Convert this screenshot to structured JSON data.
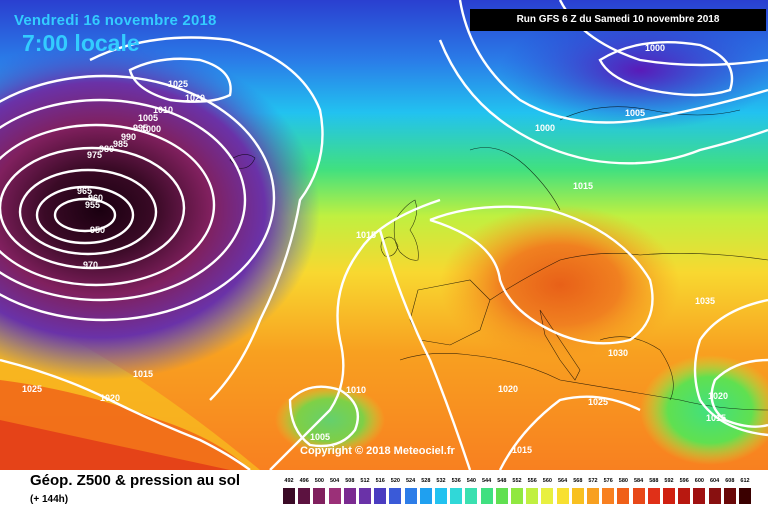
{
  "header": {
    "date_title": "Vendredi 16 novembre 2018",
    "local_time": "7:00 locale",
    "run_label": "Run GFS 6 Z du Samedi 10 novembre 2018"
  },
  "footer": {
    "product_title": "Géop. Z500 & pression au sol",
    "lead_time": "(+ 144h)",
    "copyright": "Copyright © 2018 Meteociel.fr"
  },
  "isobar_labels": [
    "1025",
    "1020",
    "1010",
    "1005",
    "1000",
    "995",
    "990",
    "985",
    "980",
    "975",
    "965",
    "960",
    "955",
    "950",
    "970",
    "1015",
    "1010",
    "1015",
    "1025",
    "1020",
    "1015",
    "1005",
    "1015",
    "1020",
    "1015",
    "1000",
    "1005",
    "1000",
    "1015",
    "1035",
    "1030",
    "1025",
    "1020",
    "1015",
    "1010",
    "1005"
  ],
  "color_scale": {
    "labels": [
      "492",
      "496",
      "500",
      "504",
      "508",
      "512",
      "516",
      "520",
      "524",
      "528",
      "532",
      "536",
      "540",
      "544",
      "548",
      "552",
      "556",
      "560",
      "564",
      "568",
      "572",
      "576",
      "580",
      "584",
      "588",
      "592",
      "596",
      "600",
      "604",
      "608",
      "612"
    ],
    "colors": [
      "#3a0a26",
      "#5c1240",
      "#80205e",
      "#9b3078",
      "#7a2a90",
      "#6a32a8",
      "#4a3cc0",
      "#3a5ad8",
      "#2d7de8",
      "#1fa0f0",
      "#22c2f0",
      "#30d8d8",
      "#3ae0b0",
      "#40e080",
      "#60e050",
      "#90e840",
      "#c0f040",
      "#e8f040",
      "#f8e030",
      "#f8c020",
      "#f8a020",
      "#f88020",
      "#f06018",
      "#e84818",
      "#e03018",
      "#d02010",
      "#b81810",
      "#a01010",
      "#881010",
      "#6a0808",
      "#3a0000"
    ]
  }
}
